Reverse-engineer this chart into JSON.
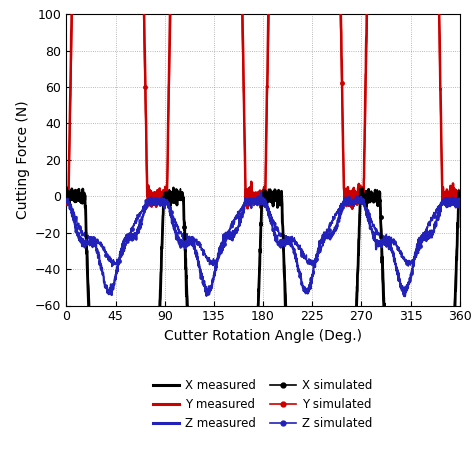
{
  "xlabel": "Cutter Rotation Angle (Deg.)",
  "ylabel": "Cutting Force (N)",
  "xlim": [
    0,
    360
  ],
  "ylim": [
    -60,
    100
  ],
  "xticks": [
    0,
    45,
    90,
    135,
    180,
    225,
    270,
    315,
    360
  ],
  "yticks": [
    -60,
    -40,
    -20,
    0,
    20,
    40,
    60,
    80,
    100
  ],
  "colors": {
    "black": "#000000",
    "red": "#cc0000",
    "blue": "#2222bb"
  },
  "legend_entries": [
    {
      "label": "X measured",
      "color": "#000000",
      "marker": null,
      "lw": 2.2
    },
    {
      "label": "Y measured",
      "color": "#cc0000",
      "marker": null,
      "lw": 2.2
    },
    {
      "label": "Z measured",
      "color": "#2222bb",
      "marker": null,
      "lw": 2.2
    },
    {
      "label": "X simulated",
      "color": "#000000",
      "marker": "o",
      "lw": 1.2
    },
    {
      "label": "Y simulated",
      "color": "#cc0000",
      "marker": "o",
      "lw": 1.2
    },
    {
      "label": "Z simulated",
      "color": "#2222bb",
      "marker": "o",
      "lw": 1.2
    }
  ],
  "figsize": [
    4.74,
    4.7
  ],
  "dpi": 100
}
